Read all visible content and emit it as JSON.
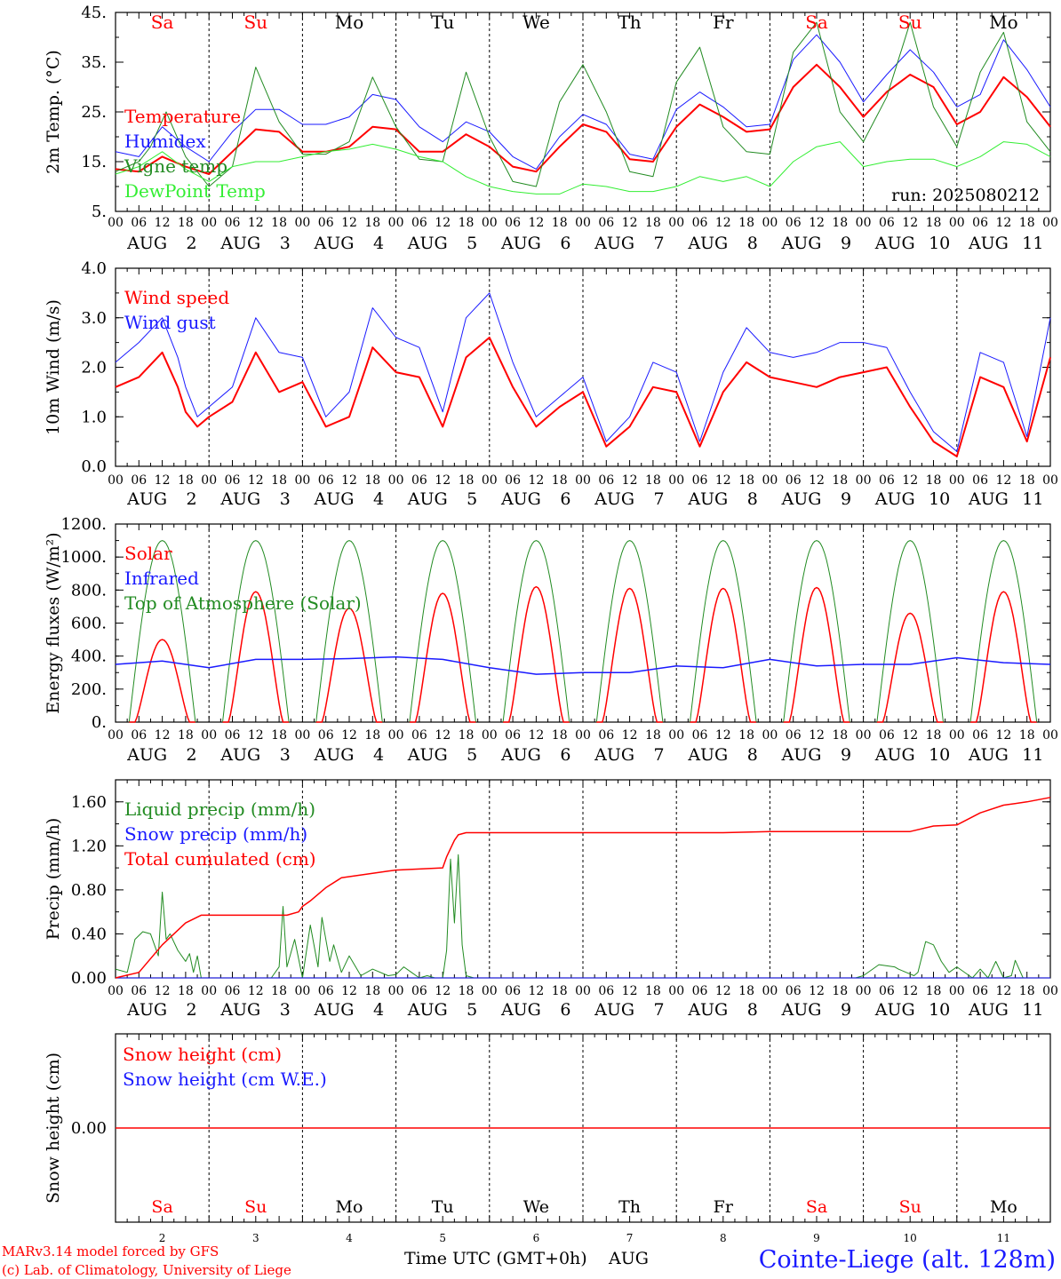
{
  "days": [
    {
      "num": "2",
      "wd": "Sa",
      "hol": true
    },
    {
      "num": "3",
      "wd": "Su",
      "hol": true
    },
    {
      "num": "4",
      "wd": "Mo",
      "hol": false
    },
    {
      "num": "5",
      "wd": "Tu",
      "hol": false
    },
    {
      "num": "6",
      "wd": "We",
      "hol": false
    },
    {
      "num": "7",
      "wd": "Th",
      "hol": false
    },
    {
      "num": "8",
      "wd": "Fr",
      "hol": false
    },
    {
      "num": "9",
      "wd": "Sa",
      "hol": true
    },
    {
      "num": "10",
      "wd": "Su",
      "hol": true
    },
    {
      "num": "11",
      "wd": "Mo",
      "hol": false
    }
  ],
  "month": "AUG",
  "hour_ticks": [
    "00",
    "06",
    "12",
    "18"
  ],
  "last_hour_tick": "00",
  "colors": {
    "red": "#ff0000",
    "green": "#228b22",
    "blue": "#1a1aff",
    "lime": "#33ee33",
    "axis": "#000000"
  },
  "footer": {
    "model": "MARv3.14 model forced by GFS",
    "lab": "(c) Lab. of Climatology, University of Liege",
    "xlabel": "Time UTC (GMT+0h)",
    "month": "AUG",
    "station": "Cointe-Liege (alt. 128m)"
  },
  "chart_data": [
    {
      "type": "line",
      "ylabel": "2m Temp. (°C)",
      "ylim": [
        5,
        45
      ],
      "yticks": [
        5,
        15,
        25,
        35,
        45
      ],
      "ytick_labels": [
        "5.",
        "15.",
        "25.",
        "35.",
        "45."
      ],
      "annotation": "run: 2025080212",
      "x_unit": "hours since AUG 2 00 UTC",
      "series": [
        {
          "name": "Temperature",
          "color": "red",
          "width": 2,
          "x": [
            0,
            6,
            12,
            18,
            24,
            30,
            36,
            42,
            48,
            54,
            60,
            66,
            72,
            78,
            84,
            90,
            96,
            102,
            108,
            114,
            120,
            126,
            132,
            138,
            144,
            150,
            156,
            162,
            168,
            174,
            180,
            186,
            192,
            198,
            204,
            210,
            216,
            222,
            228,
            234,
            240
          ],
          "y": [
            13.5,
            13,
            16,
            14,
            12.5,
            17,
            21.5,
            21,
            17,
            17,
            18,
            22,
            21.5,
            17,
            17,
            20.5,
            18,
            14,
            13,
            18,
            22.5,
            21,
            15.5,
            15,
            22,
            26.5,
            24,
            21,
            21.5,
            30,
            34.5,
            30,
            24,
            29,
            32.5,
            30,
            22.5,
            25,
            32,
            28,
            22
          ]
        },
        {
          "name": "Humidex",
          "color": "blue",
          "width": 1,
          "x": [
            0,
            6,
            12,
            18,
            24,
            30,
            36,
            42,
            48,
            54,
            60,
            66,
            72,
            78,
            84,
            90,
            96,
            102,
            108,
            114,
            120,
            126,
            132,
            138,
            144,
            150,
            156,
            162,
            168,
            174,
            180,
            186,
            192,
            198,
            204,
            210,
            216,
            222,
            228,
            234,
            240
          ],
          "y": [
            17,
            16,
            22,
            18,
            15,
            21,
            25.5,
            25.5,
            22.5,
            22.5,
            24,
            28.5,
            27.5,
            22,
            19,
            23,
            21,
            16,
            13.5,
            20,
            24.5,
            22.5,
            16.5,
            15.5,
            25.5,
            29,
            26,
            22,
            22.5,
            35.5,
            40.5,
            35,
            27,
            32.5,
            37.5,
            33,
            26,
            28.5,
            39.5,
            33.5,
            26
          ]
        },
        {
          "name": "Vigne temp",
          "color": "green",
          "width": 1,
          "x": [
            0,
            6,
            9,
            13,
            18,
            24,
            30,
            36,
            42,
            48,
            54,
            60,
            66,
            72,
            78,
            84,
            90,
            96,
            102,
            108,
            114,
            120,
            126,
            132,
            138,
            144,
            150,
            156,
            162,
            168,
            174,
            180,
            186,
            192,
            198,
            204,
            210,
            216,
            222,
            228,
            234,
            240
          ],
          "y": [
            13,
            15,
            18,
            25,
            16,
            10,
            14,
            34,
            23,
            16.5,
            16.5,
            19,
            32,
            22,
            15.5,
            15,
            33,
            20,
            11,
            10,
            27,
            34.5,
            25,
            13,
            12,
            31,
            38,
            22,
            17,
            16.5,
            37,
            43,
            25,
            19,
            28,
            43,
            26,
            18,
            33,
            41,
            23,
            17
          ]
        },
        {
          "name": "DewPoint Temp",
          "color": "lime",
          "width": 1,
          "x": [
            0,
            6,
            12,
            18,
            24,
            30,
            36,
            42,
            48,
            54,
            60,
            66,
            72,
            78,
            84,
            90,
            96,
            102,
            108,
            114,
            120,
            126,
            132,
            138,
            144,
            150,
            156,
            162,
            168,
            174,
            180,
            186,
            192,
            198,
            204,
            210,
            216,
            222,
            228,
            234,
            240
          ],
          "y": [
            12.5,
            14,
            17,
            13.5,
            11,
            14,
            15,
            15,
            16,
            17,
            17.5,
            18.5,
            17.5,
            16,
            15,
            12,
            10,
            9,
            8.5,
            8.5,
            10.5,
            10,
            9,
            9,
            10,
            12,
            11,
            12,
            10,
            15,
            18,
            19,
            14,
            15,
            15.5,
            15.5,
            14,
            16,
            19,
            18.5,
            16
          ]
        }
      ]
    },
    {
      "type": "line",
      "ylabel": "10m Wind (m/s)",
      "ylim": [
        0,
        4
      ],
      "yticks": [
        0,
        1,
        2,
        3,
        4
      ],
      "ytick_labels": [
        "0.0",
        "1.0",
        "2.0",
        "3.0",
        "4.0"
      ],
      "x_unit": "hours since AUG 2 00 UTC",
      "series": [
        {
          "name": "Wind speed",
          "color": "red",
          "width": 2,
          "x": [
            0,
            6,
            12,
            16,
            18,
            21,
            24,
            30,
            36,
            42,
            48,
            54,
            60,
            66,
            72,
            78,
            84,
            90,
            96,
            102,
            108,
            114,
            120,
            126,
            132,
            138,
            144,
            150,
            156,
            162,
            168,
            174,
            180,
            186,
            192,
            198,
            204,
            210,
            216,
            222,
            228,
            234,
            240
          ],
          "y": [
            1.6,
            1.8,
            2.3,
            1.6,
            1.1,
            0.8,
            1.0,
            1.3,
            2.3,
            1.5,
            1.7,
            0.8,
            1.0,
            2.4,
            1.9,
            1.8,
            0.8,
            2.2,
            2.6,
            1.6,
            0.8,
            1.2,
            1.5,
            0.4,
            0.8,
            1.6,
            1.5,
            0.4,
            1.5,
            2.1,
            1.8,
            1.7,
            1.6,
            1.8,
            1.9,
            2.0,
            1.2,
            0.5,
            0.2,
            1.8,
            1.6,
            0.5,
            2.2
          ]
        },
        {
          "name": "Wind gust",
          "color": "blue",
          "width": 1,
          "x": [
            0,
            6,
            12,
            16,
            18,
            21,
            24,
            30,
            36,
            42,
            48,
            54,
            60,
            66,
            72,
            78,
            84,
            90,
            96,
            102,
            108,
            114,
            120,
            126,
            132,
            138,
            144,
            150,
            156,
            162,
            168,
            174,
            180,
            186,
            192,
            198,
            204,
            210,
            216,
            222,
            228,
            234,
            240
          ],
          "y": [
            2.1,
            2.5,
            3.0,
            2.2,
            1.6,
            1.0,
            1.2,
            1.6,
            3.0,
            2.3,
            2.2,
            1.0,
            1.5,
            3.2,
            2.6,
            2.4,
            1.1,
            3.0,
            3.5,
            2.1,
            1.0,
            1.4,
            1.8,
            0.5,
            1.0,
            2.1,
            1.9,
            0.5,
            1.9,
            2.8,
            2.3,
            2.2,
            2.3,
            2.5,
            2.5,
            2.4,
            1.5,
            0.7,
            0.3,
            2.3,
            2.1,
            0.6,
            3.0
          ]
        }
      ]
    },
    {
      "type": "line",
      "ylabel": "Energy fluxes (W/m²)",
      "ylim": [
        0,
        1200
      ],
      "yticks": [
        0,
        200,
        400,
        600,
        800,
        1000,
        1200
      ],
      "ytick_labels": [
        "0.",
        "200.",
        "400.",
        "600.",
        "800.",
        "1000.",
        "1200."
      ],
      "x_unit": "hours since AUG 2 00 UTC",
      "toa_peak": 1100,
      "toa_halfwidth_h": 8.5,
      "series": [
        {
          "name": "Solar",
          "color": "red",
          "width": 1.5,
          "kind": "daily_bell",
          "peaks": [
            500,
            790,
            690,
            780,
            820,
            810,
            810,
            815,
            660,
            790
          ]
        },
        {
          "name": "Infrared",
          "color": "blue",
          "width": 1.5,
          "x": [
            0,
            12,
            24,
            36,
            48,
            60,
            72,
            84,
            96,
            108,
            120,
            132,
            144,
            156,
            168,
            180,
            192,
            204,
            216,
            228,
            240
          ],
          "y": [
            350,
            370,
            330,
            380,
            380,
            385,
            395,
            380,
            330,
            290,
            300,
            300,
            340,
            330,
            380,
            340,
            350,
            350,
            390,
            360,
            350
          ]
        },
        {
          "name": "Top of Atmosphere (Solar)",
          "color": "green",
          "width": 1,
          "kind": "toa"
        }
      ]
    },
    {
      "type": "line",
      "ylabel": "Precip (mm/h)",
      "ylim": [
        0,
        1.8
      ],
      "yticks": [
        0,
        0.4,
        0.8,
        1.2,
        1.6
      ],
      "ytick_labels": [
        "0.00",
        "0.40",
        "0.80",
        "1.20",
        "1.60"
      ],
      "x_unit": "hours since AUG 2 00 UTC",
      "series": [
        {
          "name": "Liquid precip (mm/h)",
          "color": "green",
          "width": 1,
          "x": [
            0,
            3,
            5,
            7,
            9,
            11,
            12,
            13,
            14,
            16,
            18,
            19,
            20,
            21,
            22,
            24,
            40,
            42,
            43,
            44,
            46,
            48,
            50,
            52,
            53,
            55,
            56,
            58,
            60,
            63,
            66,
            70,
            72,
            74,
            76,
            78,
            80,
            82,
            84,
            85,
            86,
            87,
            88,
            89,
            90,
            92,
            94,
            96,
            120,
            150,
            160,
            180,
            190,
            192,
            196,
            200,
            201,
            203,
            205,
            206,
            208,
            210,
            212,
            214,
            216,
            220,
            222,
            224,
            226,
            228,
            230,
            231,
            233,
            236,
            240
          ],
          "y": [
            0.08,
            0.05,
            0.35,
            0.42,
            0.4,
            0.2,
            0.78,
            0.35,
            0.4,
            0.25,
            0.15,
            0.22,
            0.05,
            0.2,
            0,
            0,
            0,
            0.1,
            0.65,
            0.1,
            0.35,
            0,
            0.48,
            0.1,
            0.55,
            0.15,
            0.3,
            0.05,
            0.2,
            0.02,
            0.08,
            0.02,
            0.03,
            0.1,
            0.05,
            0,
            0.02,
            0,
            0,
            0.25,
            1.08,
            0.5,
            1.12,
            0.3,
            0.02,
            0,
            0,
            0,
            0,
            0,
            0,
            0,
            0,
            0.02,
            0.12,
            0.1,
            0.08,
            0.05,
            0.02,
            0.05,
            0.33,
            0.3,
            0.15,
            0.05,
            0.1,
            0,
            0.08,
            0,
            0.15,
            0,
            0.02,
            0.16,
            0,
            0,
            0
          ]
        },
        {
          "name": "Snow precip (mm/h)",
          "color": "blue",
          "width": 1,
          "x": [
            0,
            240
          ],
          "y": [
            0,
            0
          ]
        },
        {
          "name": "Total cumulated (cm)",
          "color": "red",
          "width": 1.5,
          "x": [
            0,
            6,
            12,
            18,
            22,
            24,
            44,
            47,
            48,
            50,
            54,
            58,
            62,
            66,
            70,
            72,
            78,
            84,
            85,
            87,
            88,
            90,
            96,
            120,
            150,
            156,
            168,
            180,
            192,
            204,
            210,
            216,
            222,
            228,
            234,
            240
          ],
          "y": [
            0,
            0.05,
            0.3,
            0.5,
            0.57,
            0.57,
            0.57,
            0.6,
            0.65,
            0.7,
            0.82,
            0.91,
            0.93,
            0.95,
            0.97,
            0.98,
            0.99,
            1.0,
            1.1,
            1.25,
            1.3,
            1.32,
            1.32,
            1.32,
            1.32,
            1.32,
            1.33,
            1.33,
            1.33,
            1.33,
            1.38,
            1.39,
            1.5,
            1.57,
            1.6,
            1.64
          ]
        }
      ]
    },
    {
      "type": "line",
      "ylabel": "Snow height (cm)",
      "ylim": [
        -1,
        1
      ],
      "yticks": [
        0
      ],
      "ytick_labels": [
        "0.00"
      ],
      "x_unit": "hours since AUG 2 00 UTC",
      "series": [
        {
          "name": "Snow height (cm)",
          "color": "red",
          "width": 1.5,
          "x": [
            0,
            240
          ],
          "y": [
            0,
            0
          ]
        },
        {
          "name": "Snow height (cm W.E.)",
          "color": "blue",
          "width": 1,
          "x": [
            0,
            240
          ],
          "y": [
            0,
            0
          ],
          "hidden": true
        }
      ]
    }
  ]
}
